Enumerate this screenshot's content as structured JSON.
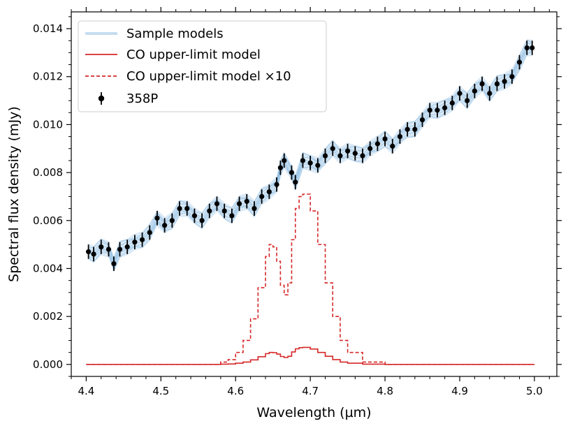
{
  "chart_data": {
    "type": "line",
    "title": "",
    "xlabel": "Wavelength (µm)",
    "ylabel": "Spectral flux density (mJy)",
    "xlim": [
      4.38,
      5.03
    ],
    "ylim": [
      -0.0005,
      0.0147
    ],
    "xticks": [
      4.4,
      4.5,
      4.6,
      4.7,
      4.8,
      4.9,
      5.0
    ],
    "xtick_labels": [
      "4.4",
      "4.5",
      "4.6",
      "4.7",
      "4.8",
      "4.9",
      "5.0"
    ],
    "yticks": [
      0.0,
      0.002,
      0.004,
      0.006,
      0.008,
      0.01,
      0.012,
      0.014
    ],
    "ytick_labels": [
      "0.000",
      "0.002",
      "0.004",
      "0.006",
      "0.008",
      "0.010",
      "0.012",
      "0.014"
    ],
    "legend_position": "top-left",
    "series": [
      {
        "name": "Sample models",
        "kind": "model-band",
        "color": "#5a9fd4",
        "x": [
          4.403,
          4.41,
          4.42,
          4.43,
          4.437,
          4.445,
          4.455,
          4.465,
          4.475,
          4.485,
          4.495,
          4.505,
          4.515,
          4.525,
          4.535,
          4.545,
          4.555,
          4.565,
          4.575,
          4.585,
          4.595,
          4.605,
          4.615,
          4.625,
          4.635,
          4.645,
          4.655,
          4.66,
          4.665,
          4.675,
          4.68,
          4.69,
          4.7,
          4.71,
          4.72,
          4.73,
          4.74,
          4.75,
          4.76,
          4.77,
          4.78,
          4.79,
          4.8,
          4.81,
          4.82,
          4.83,
          4.84,
          4.85,
          4.86,
          4.87,
          4.88,
          4.89,
          4.9,
          4.91,
          4.92,
          4.93,
          4.94,
          4.95,
          4.96,
          4.97,
          4.98,
          4.99,
          4.997
        ],
        "values": [
          0.0047,
          0.0046,
          0.0049,
          0.0048,
          0.0042,
          0.0048,
          0.0049,
          0.0051,
          0.0052,
          0.0055,
          0.0061,
          0.0058,
          0.006,
          0.0065,
          0.0065,
          0.0062,
          0.006,
          0.0064,
          0.0067,
          0.0064,
          0.0062,
          0.0067,
          0.0068,
          0.0065,
          0.007,
          0.0072,
          0.0075,
          0.0082,
          0.0085,
          0.008,
          0.0076,
          0.0085,
          0.0084,
          0.0083,
          0.0087,
          0.009,
          0.0087,
          0.0089,
          0.0088,
          0.0087,
          0.009,
          0.0092,
          0.0094,
          0.0091,
          0.0095,
          0.0098,
          0.0098,
          0.0102,
          0.0106,
          0.0106,
          0.0107,
          0.0109,
          0.0113,
          0.011,
          0.0114,
          0.0117,
          0.0113,
          0.0117,
          0.0118,
          0.012,
          0.0126,
          0.0132,
          0.0132
        ],
        "band_half_width": 0.00035
      },
      {
        "name": "CO upper-limit model",
        "kind": "step",
        "color": "#d62728",
        "linestyle": "solid",
        "x": [
          4.4,
          4.56,
          4.58,
          4.59,
          4.6,
          4.61,
          4.62,
          4.63,
          4.64,
          4.645,
          4.65,
          4.655,
          4.66,
          4.665,
          4.67,
          4.675,
          4.68,
          4.685,
          4.69,
          4.7,
          4.71,
          4.72,
          4.73,
          4.74,
          4.75,
          4.77,
          4.8,
          4.9,
          5.0
        ],
        "values": [
          0.0,
          0.0,
          1e-05,
          2e-05,
          5e-05,
          0.0001,
          0.00019,
          0.00032,
          0.00045,
          0.0005,
          0.00049,
          0.00043,
          0.00033,
          0.00029,
          0.00034,
          0.00052,
          0.00065,
          0.0007,
          0.00071,
          0.00064,
          0.0005,
          0.00034,
          0.0002,
          0.0001,
          5e-05,
          1e-05,
          0.0,
          0.0,
          0.0
        ]
      },
      {
        "name": "CO upper-limit model ×10",
        "kind": "step",
        "color": "#d62728",
        "linestyle": "dashed",
        "x": [
          4.4,
          4.56,
          4.58,
          4.59,
          4.6,
          4.61,
          4.62,
          4.63,
          4.64,
          4.645,
          4.65,
          4.655,
          4.66,
          4.665,
          4.67,
          4.675,
          4.68,
          4.685,
          4.69,
          4.7,
          4.71,
          4.72,
          4.73,
          4.74,
          4.75,
          4.77,
          4.8,
          4.9,
          5.0
        ],
        "values": [
          0.0,
          0.0,
          0.0001,
          0.0002,
          0.0005,
          0.001,
          0.0019,
          0.0032,
          0.0045,
          0.005,
          0.0049,
          0.0043,
          0.0033,
          0.0029,
          0.0034,
          0.0052,
          0.0065,
          0.007,
          0.0071,
          0.0064,
          0.005,
          0.0034,
          0.002,
          0.001,
          0.0005,
          0.0001,
          0.0,
          0.0,
          0.0
        ]
      },
      {
        "name": "358P",
        "kind": "errorbar",
        "color": "#000000",
        "x": [
          4.403,
          4.41,
          4.42,
          4.43,
          4.437,
          4.445,
          4.455,
          4.465,
          4.475,
          4.485,
          4.495,
          4.505,
          4.515,
          4.525,
          4.535,
          4.545,
          4.555,
          4.565,
          4.575,
          4.585,
          4.595,
          4.605,
          4.615,
          4.625,
          4.635,
          4.645,
          4.655,
          4.66,
          4.665,
          4.675,
          4.68,
          4.69,
          4.7,
          4.71,
          4.72,
          4.73,
          4.74,
          4.75,
          4.76,
          4.77,
          4.78,
          4.79,
          4.8,
          4.81,
          4.82,
          4.83,
          4.84,
          4.85,
          4.86,
          4.87,
          4.88,
          4.89,
          4.9,
          4.91,
          4.92,
          4.93,
          4.94,
          4.95,
          4.96,
          4.97,
          4.98,
          4.99,
          4.997
        ],
        "values": [
          0.0047,
          0.0046,
          0.0049,
          0.0048,
          0.0042,
          0.0048,
          0.0049,
          0.0051,
          0.0052,
          0.0055,
          0.0061,
          0.0058,
          0.006,
          0.0065,
          0.0065,
          0.0062,
          0.006,
          0.0064,
          0.0067,
          0.0064,
          0.0062,
          0.0067,
          0.0068,
          0.0065,
          0.007,
          0.0072,
          0.0075,
          0.0082,
          0.0085,
          0.008,
          0.0076,
          0.0085,
          0.0084,
          0.0083,
          0.0087,
          0.009,
          0.0087,
          0.0089,
          0.0088,
          0.0087,
          0.009,
          0.0092,
          0.0094,
          0.0091,
          0.0095,
          0.0098,
          0.0098,
          0.0102,
          0.0106,
          0.0106,
          0.0107,
          0.0109,
          0.0113,
          0.011,
          0.0114,
          0.0117,
          0.0113,
          0.0117,
          0.0118,
          0.012,
          0.0126,
          0.0132,
          0.0132
        ],
        "yerr": 0.0003
      }
    ]
  }
}
